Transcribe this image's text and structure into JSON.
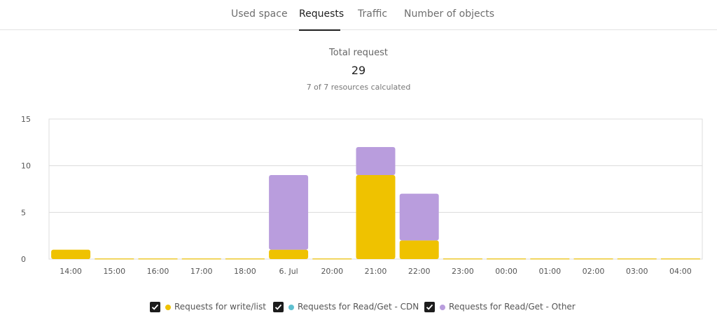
{
  "tabs": [
    {
      "label": "Used space",
      "active": false
    },
    {
      "label": "Requests",
      "active": true
    },
    {
      "label": "Traffic",
      "active": false
    },
    {
      "label": "Number of objects",
      "active": false
    }
  ],
  "summary": {
    "title": "Total request",
    "value": "29",
    "subtitle": "7 of 7 resources calculated"
  },
  "legend": [
    {
      "label": "Requests for write/list",
      "color": "#efc200",
      "checked": true
    },
    {
      "label": "Requests for Read/Get - CDN",
      "color": "#5fc0d0",
      "checked": true
    },
    {
      "label": "Requests for Read/Get - Other",
      "color": "#b99ddd",
      "checked": true
    }
  ],
  "chart_data": {
    "type": "bar",
    "stacked": true,
    "categories": [
      "14:00",
      "15:00",
      "16:00",
      "17:00",
      "18:00",
      "6. Jul",
      "20:00",
      "21:00",
      "22:00",
      "23:00",
      "00:00",
      "01:00",
      "02:00",
      "03:00",
      "04:00"
    ],
    "series": [
      {
        "name": "Requests for write/list",
        "color": "#efc200",
        "values": [
          1,
          0,
          0,
          0,
          0,
          1,
          0,
          9,
          2,
          0,
          0,
          0,
          0,
          0,
          0
        ]
      },
      {
        "name": "Requests for Read/Get - CDN",
        "color": "#5fc0d0",
        "values": [
          0,
          0,
          0,
          0,
          0,
          0,
          0,
          0,
          0,
          0,
          0,
          0,
          0,
          0,
          0
        ]
      },
      {
        "name": "Requests for Read/Get - Other",
        "color": "#b99ddd",
        "values": [
          0,
          0,
          0,
          0,
          0,
          8,
          0,
          3,
          5,
          0,
          0,
          0,
          0,
          0,
          0
        ]
      }
    ],
    "yticks": [
      0,
      5,
      10,
      15
    ],
    "ylim": [
      0,
      15
    ],
    "grid": true,
    "legend_position": "bottom"
  }
}
